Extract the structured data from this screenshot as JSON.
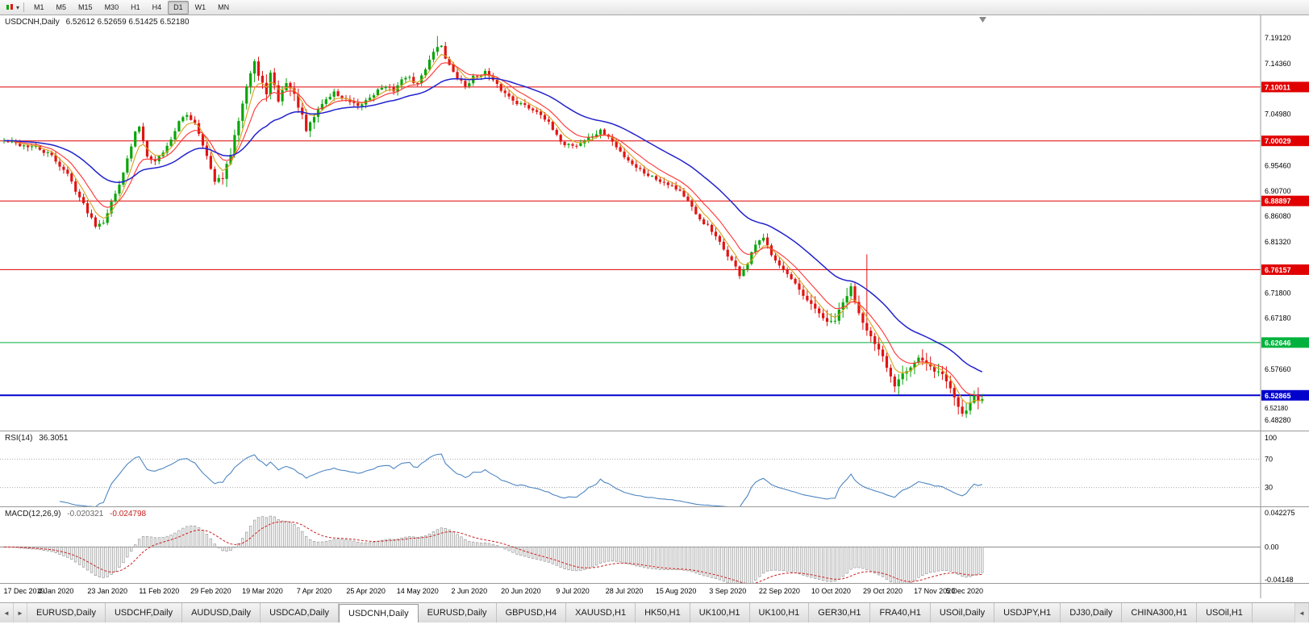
{
  "toolbar": {
    "timeframes": [
      "M1",
      "M5",
      "M15",
      "M30",
      "H1",
      "H4",
      "D1",
      "W1",
      "MN"
    ],
    "active": "D1"
  },
  "chart": {
    "title": "USDCNH,Daily",
    "ohlc": "6.52612 6.52659 6.51425 6.52180"
  },
  "chart_data": {
    "type": "candlestick",
    "symbol": "USDCNH",
    "timeframe": "Daily",
    "open": "6.52612",
    "high": "6.52659",
    "low": "6.51425",
    "close": "6.52180",
    "price_range": [
      6.4633,
      7.233
    ],
    "price_axis_ticks": [
      "7.19120",
      "7.14360",
      "7.04980",
      "6.95460",
      "6.90700",
      "6.86080",
      "6.81320",
      "6.71800",
      "6.67180",
      "6.57660",
      "6.48280"
    ],
    "hlines": [
      {
        "value": "7.10011",
        "color": "#e00000",
        "lw": 1
      },
      {
        "value": "7.00029",
        "color": "#e00000",
        "lw": 1
      },
      {
        "value": "6.88897",
        "color": "#e00000",
        "lw": 1
      },
      {
        "value": "6.76157",
        "color": "#e00000",
        "lw": 1
      },
      {
        "value": "6.62646",
        "color": "#00b23d",
        "lw": 1
      },
      {
        "value": "6.52865",
        "color": "#0000cc",
        "lw": 2
      }
    ],
    "current_price_label": "6.52180",
    "x_labels": [
      "17 Dec 2019",
      "4 Jan 2020",
      "23 Jan 2020",
      "11 Feb 2020",
      "29 Feb 2020",
      "19 Mar 2020",
      "7 Apr 2020",
      "25 Apr 2020",
      "14 May 2020",
      "2 Jun 2020",
      "20 Jun 2020",
      "9 Jul 2020",
      "28 Jul 2020",
      "15 Aug 2020",
      "3 Sep 2020",
      "22 Sep 2020",
      "10 Oct 2020",
      "29 Oct 2020",
      "17 Nov 2020",
      "5 Dec 2020"
    ],
    "candles_per_label": 13,
    "candle_count": 247,
    "close_waypoints": [
      [
        0,
        7.0
      ],
      [
        4,
        6.993
      ],
      [
        8,
        6.988
      ],
      [
        12,
        6.972
      ],
      [
        16,
        6.938
      ],
      [
        20,
        6.882
      ],
      [
        23,
        6.845
      ],
      [
        25,
        6.852
      ],
      [
        28,
        6.902
      ],
      [
        31,
        6.965
      ],
      [
        33,
        7.015
      ],
      [
        34,
        7.028
      ],
      [
        36,
        6.975
      ],
      [
        38,
        6.962
      ],
      [
        41,
        6.99
      ],
      [
        44,
        7.035
      ],
      [
        46,
        7.048
      ],
      [
        48,
        7.035
      ],
      [
        50,
        6.995
      ],
      [
        53,
        6.923
      ],
      [
        55,
        6.933
      ],
      [
        57,
        6.975
      ],
      [
        59,
        7.04
      ],
      [
        61,
        7.105
      ],
      [
        63,
        7.148
      ],
      [
        64,
        7.12
      ],
      [
        66,
        7.09
      ],
      [
        67,
        7.125
      ],
      [
        69,
        7.075
      ],
      [
        71,
        7.11
      ],
      [
        73,
        7.085
      ],
      [
        75,
        7.045
      ],
      [
        76,
        7.018
      ],
      [
        78,
        7.045
      ],
      [
        80,
        7.07
      ],
      [
        83,
        7.09
      ],
      [
        86,
        7.075
      ],
      [
        89,
        7.062
      ],
      [
        92,
        7.082
      ],
      [
        95,
        7.1
      ],
      [
        98,
        7.095
      ],
      [
        101,
        7.12
      ],
      [
        104,
        7.105
      ],
      [
        106,
        7.135
      ],
      [
        108,
        7.168
      ],
      [
        110,
        7.178
      ],
      [
        111,
        7.155
      ],
      [
        113,
        7.125
      ],
      [
        116,
        7.102
      ],
      [
        118,
        7.118
      ],
      [
        121,
        7.128
      ],
      [
        123,
        7.11
      ],
      [
        126,
        7.088
      ],
      [
        129,
        7.072
      ],
      [
        132,
        7.062
      ],
      [
        135,
        7.052
      ],
      [
        137,
        7.032
      ],
      [
        139,
        7.008
      ],
      [
        141,
        6.995
      ],
      [
        144,
        6.992
      ],
      [
        147,
        7.005
      ],
      [
        150,
        7.018
      ],
      [
        152,
        7.008
      ],
      [
        154,
        6.988
      ],
      [
        156,
        6.972
      ],
      [
        159,
        6.952
      ],
      [
        161,
        6.942
      ],
      [
        164,
        6.93
      ],
      [
        167,
        6.922
      ],
      [
        170,
        6.908
      ],
      [
        172,
        6.888
      ],
      [
        174,
        6.862
      ],
      [
        177,
        6.842
      ],
      [
        180,
        6.81
      ],
      [
        183,
        6.778
      ],
      [
        185,
        6.752
      ],
      [
        187,
        6.772
      ],
      [
        189,
        6.808
      ],
      [
        191,
        6.818
      ],
      [
        193,
        6.792
      ],
      [
        196,
        6.762
      ],
      [
        198,
        6.742
      ],
      [
        200,
        6.722
      ],
      [
        202,
        6.702
      ],
      [
        205,
        6.682
      ],
      [
        207,
        6.662
      ],
      [
        209,
        6.668
      ],
      [
        211,
        6.7
      ],
      [
        213,
        6.728
      ],
      [
        215,
        6.682
      ],
      [
        217,
        6.652
      ],
      [
        219,
        6.622
      ],
      [
        221,
        6.598
      ],
      [
        223,
        6.562
      ],
      [
        224,
        6.548
      ],
      [
        226,
        6.572
      ],
      [
        228,
        6.582
      ],
      [
        230,
        6.598
      ],
      [
        232,
        6.585
      ],
      [
        234,
        6.575
      ],
      [
        236,
        6.568
      ],
      [
        238,
        6.542
      ],
      [
        240,
        6.508
      ],
      [
        241,
        6.496
      ],
      [
        242,
        6.502
      ],
      [
        243,
        6.518
      ],
      [
        244,
        6.528
      ],
      [
        245,
        6.52
      ],
      [
        246,
        6.5218
      ]
    ],
    "spikes": [
      [
        109,
        0.015
      ],
      [
        217,
        0.115
      ]
    ],
    "up_color": "#0aa50a",
    "down_color": "#e01414",
    "moving_averages": [
      {
        "period": 5,
        "color": "#d9a21b"
      },
      {
        "period": 10,
        "color": "#ff3333"
      },
      {
        "period": 30,
        "color": "#2222cc"
      }
    ],
    "rsi": {
      "label": "RSI(14)",
      "value": "36.3051",
      "period": 14,
      "color": "#4f86c0",
      "axis": [
        "100",
        "70",
        "30"
      ],
      "levels": [
        70,
        30
      ]
    },
    "macd": {
      "label": "MACD(12,26,9)",
      "main_value": "-0.020321",
      "signal_value": "-0.024798",
      "fast": 12,
      "slow": 26,
      "signal": 9,
      "signal_color": "#cc2222",
      "axis": [
        "0.042275",
        "0.00",
        "-0.04148"
      ]
    }
  },
  "tabs": {
    "items": [
      "EURUSD,Daily",
      "USDCHF,Daily",
      "AUDUSD,Daily",
      "USDCAD,Daily",
      "USDCNH,Daily",
      "EURUSD,Daily",
      "GBPUSD,H4",
      "XAUUSD,H1",
      "HK50,H1",
      "UK100,H1",
      "UK100,H1",
      "GER30,H1",
      "FRA40,H1",
      "USOil,Daily",
      "USDJPY,H1",
      "DJ30,Daily",
      "CHINA300,H1",
      "USOil,H1"
    ],
    "active_index": 4
  }
}
